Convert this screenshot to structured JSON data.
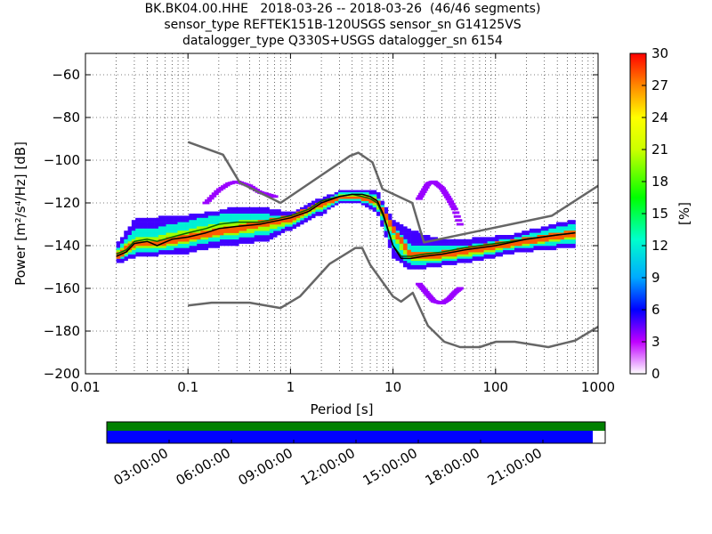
{
  "title_lines": [
    "BK.BK04.00.HHE   2018-03-26 -- 2018-03-26  (46/46 segments)",
    "sensor_type REFTEK151B-120USGS sensor_sn G14125VS",
    "datalogger_type Q330S+USGS datalogger_sn 6154"
  ],
  "chart_data": {
    "type": "heatmap",
    "xlabel": "Period [s]",
    "ylabel": "Power [m²/s⁴/Hz] [dB]",
    "xscale": "log",
    "xlim": [
      0.01,
      1000
    ],
    "ylim": [
      -200,
      -50
    ],
    "xtick_labels": [
      "0.01",
      "0.1",
      "1",
      "10",
      "100",
      "1000"
    ],
    "xtick_values": [
      0.01,
      0.1,
      1,
      10,
      100,
      1000
    ],
    "ytick_values": [
      -200,
      -180,
      -160,
      -140,
      -120,
      -100,
      -80,
      -60
    ],
    "ytick_labels": [
      "−200",
      "−180",
      "−160",
      "−140",
      "−120",
      "−100",
      "−80",
      "−60"
    ],
    "grid": "dotted",
    "colorbar": {
      "label": "[%]",
      "min": 0,
      "max": 30,
      "ticks": [
        0,
        3,
        6,
        9,
        12,
        15,
        18,
        21,
        24,
        27,
        30
      ],
      "colormap": "pqlx"
    },
    "noise_models": {
      "high": {
        "x": [
          0.1,
          0.22,
          0.32,
          0.8,
          3.8,
          4.6,
          6.3,
          7.9,
          15.4,
          20,
          354,
          1000
        ],
        "y": [
          -91.5,
          -97.4,
          -110.5,
          -120,
          -98,
          -96.5,
          -101,
          -113.5,
          -120,
          -138.5,
          -126,
          -112
        ]
      },
      "low": {
        "x": [
          0.1,
          0.17,
          0.4,
          0.8,
          1.24,
          2.4,
          4.3,
          5,
          6,
          10,
          12,
          15.6,
          21.9,
          31.6,
          45,
          70,
          101,
          154,
          328,
          600,
          1000
        ],
        "y": [
          -168,
          -166.7,
          -166.7,
          -169.2,
          -163.7,
          -148.6,
          -141.1,
          -141.1,
          -149,
          -163.8,
          -166.2,
          -162.1,
          -177.5,
          -185,
          -187.5,
          -187.5,
          -185,
          -185,
          -187.5,
          -184.4,
          -178
        ]
      }
    },
    "mode_curve": {
      "x": [
        0.02,
        0.025,
        0.03,
        0.04,
        0.05,
        0.07,
        0.1,
        0.15,
        0.2,
        0.3,
        0.5,
        0.8,
        1,
        1.5,
        2,
        3,
        4,
        5,
        6,
        7,
        8,
        10,
        12,
        15,
        20,
        30,
        50,
        100,
        200,
        400,
        600
      ],
      "y": [
        -145,
        -143,
        -139,
        -138,
        -140,
        -137,
        -136,
        -134,
        -132,
        -131,
        -130,
        -128,
        -127,
        -124,
        -120,
        -117,
        -116,
        -116,
        -117,
        -119,
        -125,
        -140,
        -146,
        -146,
        -145,
        -144,
        -142,
        -140,
        -137,
        -135,
        -134
      ]
    },
    "mean_curve": {
      "x": [
        0.02,
        0.025,
        0.03,
        0.04,
        0.05,
        0.07,
        0.1,
        0.15,
        0.2,
        0.3,
        0.5,
        0.8,
        1,
        1.5,
        2,
        3,
        4,
        5,
        6,
        7,
        8,
        10,
        12,
        15,
        20,
        30,
        50,
        100,
        200,
        400,
        600
      ],
      "y": [
        -144,
        -142,
        -138,
        -137,
        -138,
        -136,
        -134,
        -132,
        -130,
        -129,
        -129,
        -127,
        -126,
        -123,
        -119,
        -117,
        -116,
        -117,
        -118,
        -120,
        -126,
        -140,
        -145,
        -145,
        -144,
        -143,
        -141,
        -139,
        -137,
        -135,
        -134
      ]
    },
    "ppsd_hist_bands": [
      {
        "x": [
          0.02,
          0.03,
          0.05,
          0.1,
          0.2,
          0.3,
          0.6,
          1,
          2,
          3,
          5,
          7,
          10,
          15,
          30,
          60,
          150,
          600
        ],
        "y_low": [
          -148,
          -145,
          -144,
          -143,
          -140,
          -139,
          -137,
          -132,
          -125,
          -120,
          -120,
          -124,
          -145,
          -151,
          -149,
          -147,
          -143,
          -140
        ],
        "y_high": [
          -140,
          -128,
          -127,
          -126,
          -124,
          -122,
          -123,
          -125,
          -118,
          -115,
          -114,
          -115,
          -128,
          -133,
          -138,
          -137,
          -135,
          -128
        ],
        "level": 5
      },
      {
        "x": [
          0.02,
          0.03,
          0.05,
          0.1,
          0.2,
          0.3,
          0.6,
          1,
          2,
          3,
          5,
          7,
          10,
          15,
          30,
          60,
          150,
          600
        ],
        "y_low": [
          -146,
          -143,
          -142,
          -140,
          -137,
          -136,
          -134,
          -130,
          -123,
          -119,
          -119,
          -122,
          -140,
          -149,
          -147,
          -145,
          -141,
          -138
        ],
        "y_high": [
          -142,
          -133,
          -132,
          -129,
          -126,
          -125,
          -126,
          -127,
          -120,
          -116,
          -115,
          -117,
          -132,
          -140,
          -141,
          -140,
          -137,
          -130
        ],
        "level": 12
      },
      {
        "x": [
          0.02,
          0.03,
          0.05,
          0.1,
          0.2,
          0.3,
          0.6,
          1,
          2,
          3,
          5,
          7,
          10,
          15,
          30,
          60,
          150,
          600
        ],
        "y_low": [
          -146,
          -141,
          -141,
          -138,
          -135,
          -134,
          -132,
          -129,
          -122,
          -118,
          -118,
          -121,
          -136,
          -147,
          -146,
          -144,
          -140,
          -136
        ],
        "y_high": [
          -143,
          -137,
          -136,
          -133,
          -130,
          -129,
          -128,
          -127,
          -120,
          -117,
          -116,
          -118,
          -135,
          -143,
          -143,
          -142,
          -139,
          -133
        ],
        "level": 20
      },
      {
        "x": [
          0.02,
          0.03,
          0.05,
          0.1,
          0.3,
          1,
          2,
          3,
          5,
          7,
          10,
          15,
          30,
          100,
          600
        ],
        "y_low": [
          -146,
          -140,
          -140,
          -137,
          -133,
          -128,
          -121,
          -118,
          -118,
          -120,
          -133,
          -146,
          -145,
          -141,
          -135
        ],
        "y_high": [
          -144,
          -138,
          -138,
          -135,
          -131,
          -126,
          -120,
          -117,
          -117,
          -119,
          -131,
          -144,
          -143,
          -139,
          -133
        ],
        "level": 28
      }
    ],
    "ppsd_scatter_outliers": [
      {
        "x": [
          0.15,
          0.2,
          0.25,
          0.3,
          0.4,
          0.5,
          0.7
        ],
        "y": [
          -120,
          -114,
          -111,
          -110,
          -112,
          -115,
          -117
        ]
      },
      {
        "x": [
          18,
          22,
          25,
          30,
          35,
          40,
          45
        ],
        "y": [
          -118,
          -111,
          -110,
          -113,
          -118,
          -123,
          -130
        ]
      },
      {
        "x": [
          18,
          22,
          25,
          30,
          35,
          40,
          45
        ],
        "y": [
          -158,
          -163,
          -166,
          -167,
          -165,
          -162,
          -160
        ]
      }
    ]
  },
  "timeline": {
    "tick_labels": [
      "03:00:00",
      "06:00:00",
      "09:00:00",
      "12:00:00",
      "15:00:00",
      "18:00:00",
      "21:00:00"
    ],
    "tick_hours": [
      3,
      6,
      9,
      12,
      15,
      18,
      21
    ],
    "total_hours": 24,
    "coverage_fraction": 0.975,
    "colors": {
      "data": "#008000",
      "used": "#0000ff"
    }
  },
  "colors": {
    "noise_model": "#666666",
    "mode": "#000000",
    "mean": "#006400"
  }
}
